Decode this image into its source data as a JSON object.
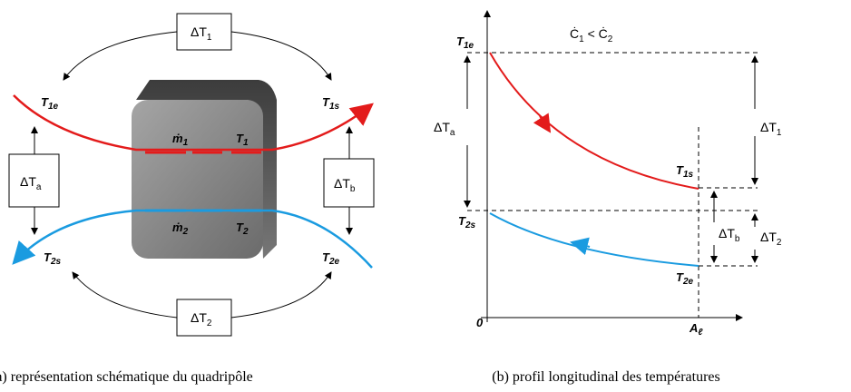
{
  "left": {
    "box_top": {
      "base": "ΔT",
      "sub": "1"
    },
    "box_left": {
      "base": "ΔT",
      "sub": "a"
    },
    "box_right": {
      "base": "ΔT",
      "sub": "b"
    },
    "box_bottom": {
      "base": "ΔT",
      "sub": "2"
    },
    "t1e": {
      "base": "T",
      "sub": "1e"
    },
    "t1s": {
      "base": "T",
      "sub": "1s"
    },
    "t2s": {
      "base": "T",
      "sub": "2s"
    },
    "t2e": {
      "base": "T",
      "sub": "2e"
    },
    "m1": {
      "base": "ṁ",
      "sub": "1"
    },
    "t1": {
      "base": "T",
      "sub": "1"
    },
    "m2": {
      "base": "ṁ",
      "sub": "2"
    },
    "t2": {
      "base": "T",
      "sub": "2"
    }
  },
  "right": {
    "condition": {
      "a": "Ċ",
      "a_sub": "1",
      "op": " < ",
      "b": "Ċ",
      "b_sub": "2"
    },
    "t1e": {
      "base": "T",
      "sub": "1e"
    },
    "dta": {
      "base": "ΔT",
      "sub": "a"
    },
    "dt1": {
      "base": "ΔT",
      "sub": "1"
    },
    "t1s": {
      "base": "T",
      "sub": "1s"
    },
    "t2s": {
      "base": "T",
      "sub": "2s"
    },
    "dtb": {
      "base": "ΔT",
      "sub": "b"
    },
    "dt2": {
      "base": "ΔT",
      "sub": "2"
    },
    "t2e": {
      "base": "T",
      "sub": "2e"
    },
    "origin": "0",
    "al": {
      "base": "A",
      "sub": "ℓ"
    }
  },
  "captions": {
    "a": "(a) représentation schématique du quadripôle",
    "b": "(b) profil longitudinal des températures"
  }
}
